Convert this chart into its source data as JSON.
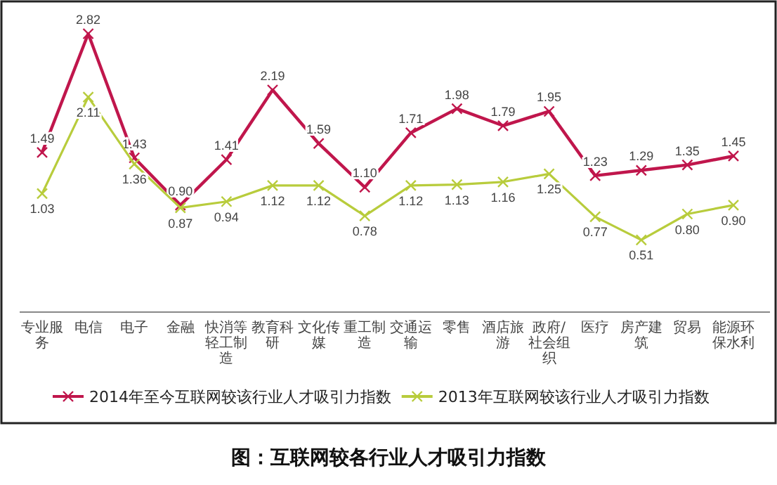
{
  "chart_data": {
    "type": "line",
    "title": "图：互联网较各行业人才吸引力指数",
    "categories": [
      "专业服务",
      "电信",
      "电子",
      "金融",
      "快消等轻工制造",
      "教育科研",
      "文化传媒",
      "重工制造",
      "交通运输",
      "零售",
      "酒店旅游",
      "政府/社会组织",
      "医疗",
      "房产建筑",
      "贸易",
      "能源环保水利"
    ],
    "series": [
      {
        "name": "2014年至今互联网较该行业人才吸引力指数",
        "color": "#c0164c",
        "values": [
          1.49,
          2.82,
          1.43,
          0.9,
          1.41,
          2.19,
          1.59,
          1.1,
          1.71,
          1.98,
          1.79,
          1.95,
          1.23,
          1.29,
          1.35,
          1.45
        ],
        "value_labels": [
          "1.49",
          "2.82",
          "1.43",
          "0.90",
          "1.41",
          "2.19",
          "1.59",
          "1.10",
          "1.71",
          "1.98",
          "1.79",
          "1.95",
          "1.23",
          "1.29",
          "1.35",
          "1.45"
        ]
      },
      {
        "name": "2013年互联网较该行业人才吸引力指数",
        "color": "#b8cc3c",
        "values": [
          1.03,
          2.11,
          1.36,
          0.87,
          0.94,
          1.12,
          1.12,
          0.78,
          1.12,
          1.13,
          1.16,
          1.25,
          0.77,
          0.51,
          0.8,
          0.9
        ],
        "value_labels": [
          "1.03",
          "2.11",
          "1.36",
          "0.87",
          "0.94",
          "1.12",
          "1.12",
          "0.78",
          "1.12",
          "1.13",
          "1.16",
          "1.25",
          "0.77",
          "0.51",
          "0.80",
          "0.90"
        ]
      }
    ],
    "marker": "cross",
    "legend": "bottom"
  }
}
